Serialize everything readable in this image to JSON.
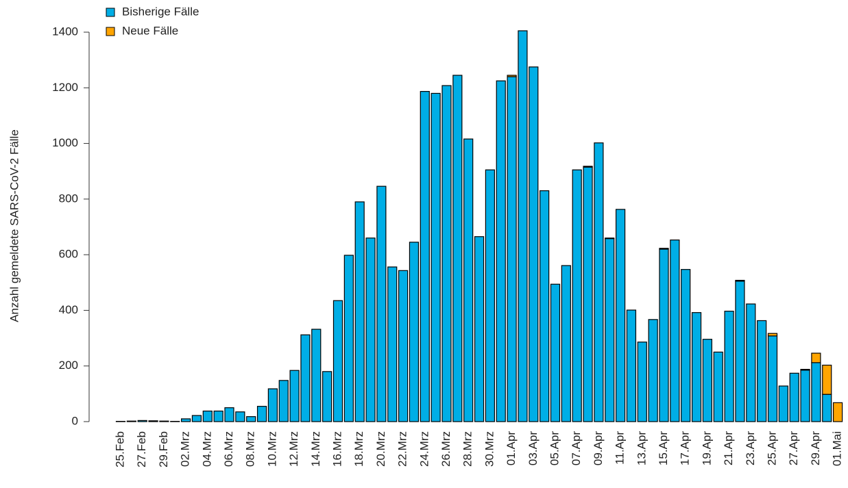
{
  "chart_data": {
    "type": "bar",
    "stacked": true,
    "y_label": "Anzahl gemeldete SARS-CoV-2 Fälle",
    "categories": [
      "25.Feb",
      null,
      "27.Feb",
      null,
      "29.Feb",
      null,
      "02.Mrz",
      null,
      "04.Mrz",
      null,
      "06.Mrz",
      null,
      "08.Mrz",
      null,
      "10.Mrz",
      null,
      "12.Mrz",
      null,
      "14.Mrz",
      null,
      "16.Mrz",
      null,
      "18.Mrz",
      null,
      "20.Mrz",
      null,
      "22.Mrz",
      null,
      "24.Mrz",
      null,
      "26.Mrz",
      null,
      "28.Mrz",
      null,
      "30.Mrz",
      null,
      "01.Apr",
      null,
      "03.Apr",
      null,
      "05.Apr",
      null,
      "07.Apr",
      null,
      "09.Apr",
      null,
      "11.Apr",
      null,
      "13.Apr",
      null,
      "15.Apr",
      null,
      "17.Apr",
      null,
      "19.Apr",
      null,
      "21.Apr",
      null,
      "23.Apr",
      null,
      "25.Apr",
      null,
      "27.Apr",
      null,
      "29.Apr",
      null,
      "01.Mai"
    ],
    "series": [
      {
        "name": "Bisherige Fälle",
        "color": "#00aee6",
        "values": [
          1,
          2,
          4,
          3,
          2,
          1,
          10,
          22,
          38,
          38,
          50,
          35,
          18,
          55,
          118,
          148,
          184,
          312,
          332,
          180,
          435,
          598,
          790,
          660,
          846,
          556,
          543,
          645,
          1187,
          1180,
          1208,
          1245,
          1016,
          665,
          905,
          1225,
          1240,
          1405,
          1275,
          830,
          494,
          561,
          905,
          915,
          1002,
          658,
          763,
          401,
          286,
          367,
          620,
          653,
          547,
          392,
          296,
          250,
          397,
          505,
          423,
          363,
          308,
          128,
          174,
          185,
          212,
          98,
          0
        ]
      },
      {
        "name": "Neue Fälle",
        "color": "#ffa500",
        "values": [
          0,
          0,
          0,
          0,
          0,
          0,
          0,
          0,
          0,
          0,
          0,
          0,
          0,
          0,
          0,
          0,
          0,
          0,
          0,
          0,
          0,
          0,
          0,
          0,
          0,
          0,
          0,
          0,
          0,
          0,
          0,
          0,
          0,
          0,
          0,
          0,
          5,
          0,
          0,
          0,
          0,
          0,
          0,
          3,
          0,
          2,
          0,
          0,
          0,
          0,
          3,
          0,
          0,
          0,
          0,
          0,
          0,
          3,
          0,
          0,
          9,
          0,
          0,
          3,
          34,
          105,
          68
        ]
      }
    ],
    "ylim": [
      0,
      1400
    ],
    "yticks": [
      0,
      200,
      400,
      600,
      800,
      1000,
      1200,
      1400
    ],
    "legend": "top-left"
  }
}
